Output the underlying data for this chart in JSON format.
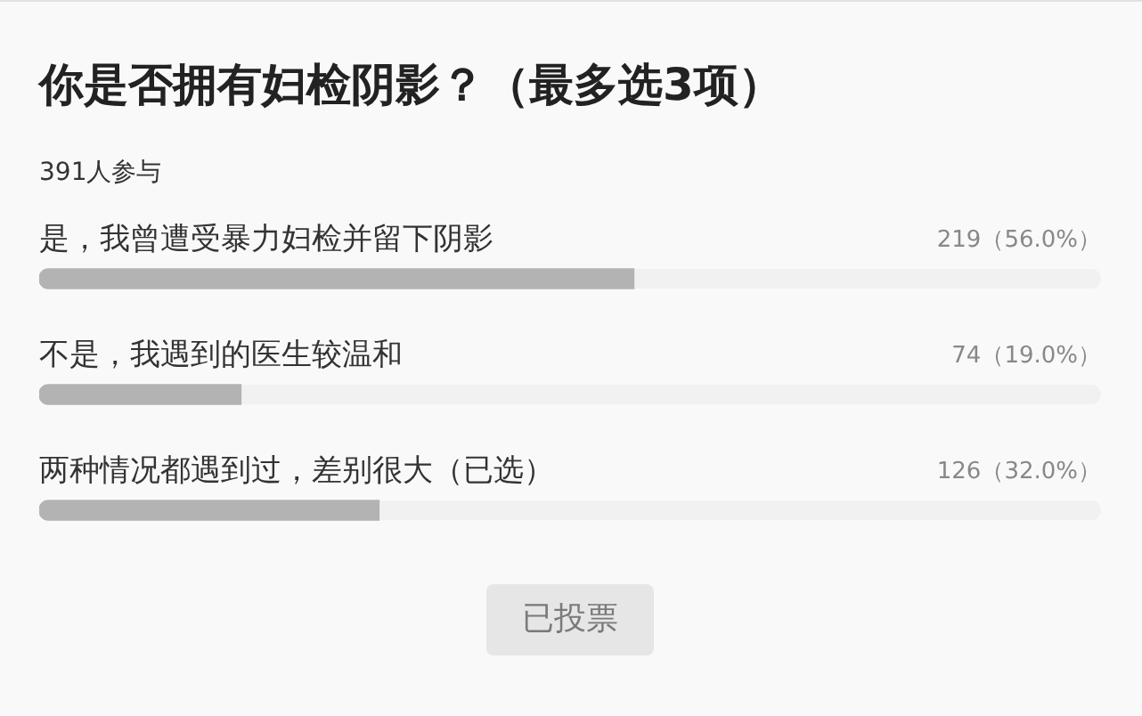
{
  "chart_data": {
    "type": "bar",
    "orientation": "horizontal",
    "title": "你是否拥有妇检阴影？（最多选3项）",
    "subtitle": "391人参与",
    "categories": [
      "是，我曾遭受暴力妇检并留下阴影",
      "不是，我遇到的医生较温和",
      "两种情况都遇到过，差别很大（已选）"
    ],
    "values": [
      56.0,
      19.0,
      32.0
    ],
    "color": "#b3b3b3",
    "xlim": [
      0,
      100
    ],
    "value_labels": [
      "219（56.0%）",
      "74（19.0%）",
      "126（32.0%）"
    ],
    "annotations": [
      "已投票"
    ],
    "grid": false,
    "legend": false,
    "tick_labels": false
  }
}
